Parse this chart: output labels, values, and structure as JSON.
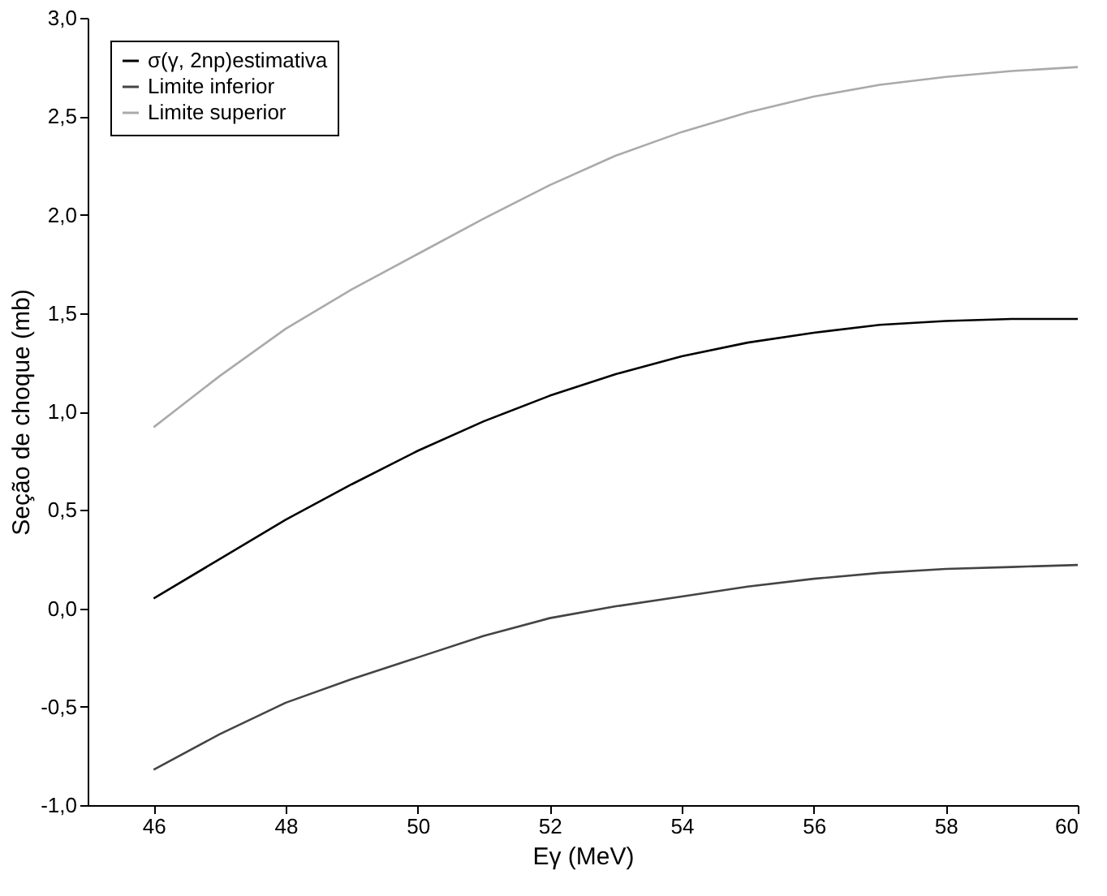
{
  "chart_data": {
    "type": "line",
    "xlabel": "Eγ (MeV)",
    "ylabel": "Seção de choque (mb)",
    "x": [
      46,
      47,
      48,
      49,
      50,
      51,
      52,
      53,
      54,
      55,
      56,
      57,
      58,
      59,
      60
    ],
    "series": [
      {
        "name": "σ(γ, 2np)estimativa",
        "color": "#000000",
        "values": [
          0.05,
          0.25,
          0.45,
          0.63,
          0.8,
          0.95,
          1.08,
          1.19,
          1.28,
          1.35,
          1.4,
          1.44,
          1.46,
          1.47,
          1.47
        ]
      },
      {
        "name": "Limite inferior",
        "color": "#444444",
        "values": [
          -0.82,
          -0.64,
          -0.48,
          -0.36,
          -0.25,
          -0.14,
          -0.05,
          0.01,
          0.06,
          0.11,
          0.15,
          0.18,
          0.2,
          0.21,
          0.22
        ]
      },
      {
        "name": "Limite superior",
        "color": "#aaaaaa",
        "values": [
          0.92,
          1.18,
          1.42,
          1.62,
          1.8,
          1.98,
          2.15,
          2.3,
          2.42,
          2.52,
          2.6,
          2.66,
          2.7,
          2.73,
          2.75
        ]
      }
    ],
    "xlim": [
      45,
      60
    ],
    "xticks": [
      46,
      48,
      50,
      52,
      54,
      56,
      58,
      60
    ],
    "ylim": [
      -1,
      3
    ],
    "yticks": [
      {
        "value": -1,
        "label": "-1,0"
      },
      {
        "value": -0.5,
        "label": "-0,5"
      },
      {
        "value": 0,
        "label": "0,0"
      },
      {
        "value": 0.5,
        "label": "0,5"
      },
      {
        "value": 1,
        "label": "1,0"
      },
      {
        "value": 1.5,
        "label": "1,5"
      },
      {
        "value": 2,
        "label": "2,0"
      },
      {
        "value": 2.5,
        "label": "2,5"
      },
      {
        "value": 3,
        "label": "3,0"
      }
    ],
    "grid": false,
    "legend": "top left",
    "marker": "none",
    "line_style": "solid"
  }
}
